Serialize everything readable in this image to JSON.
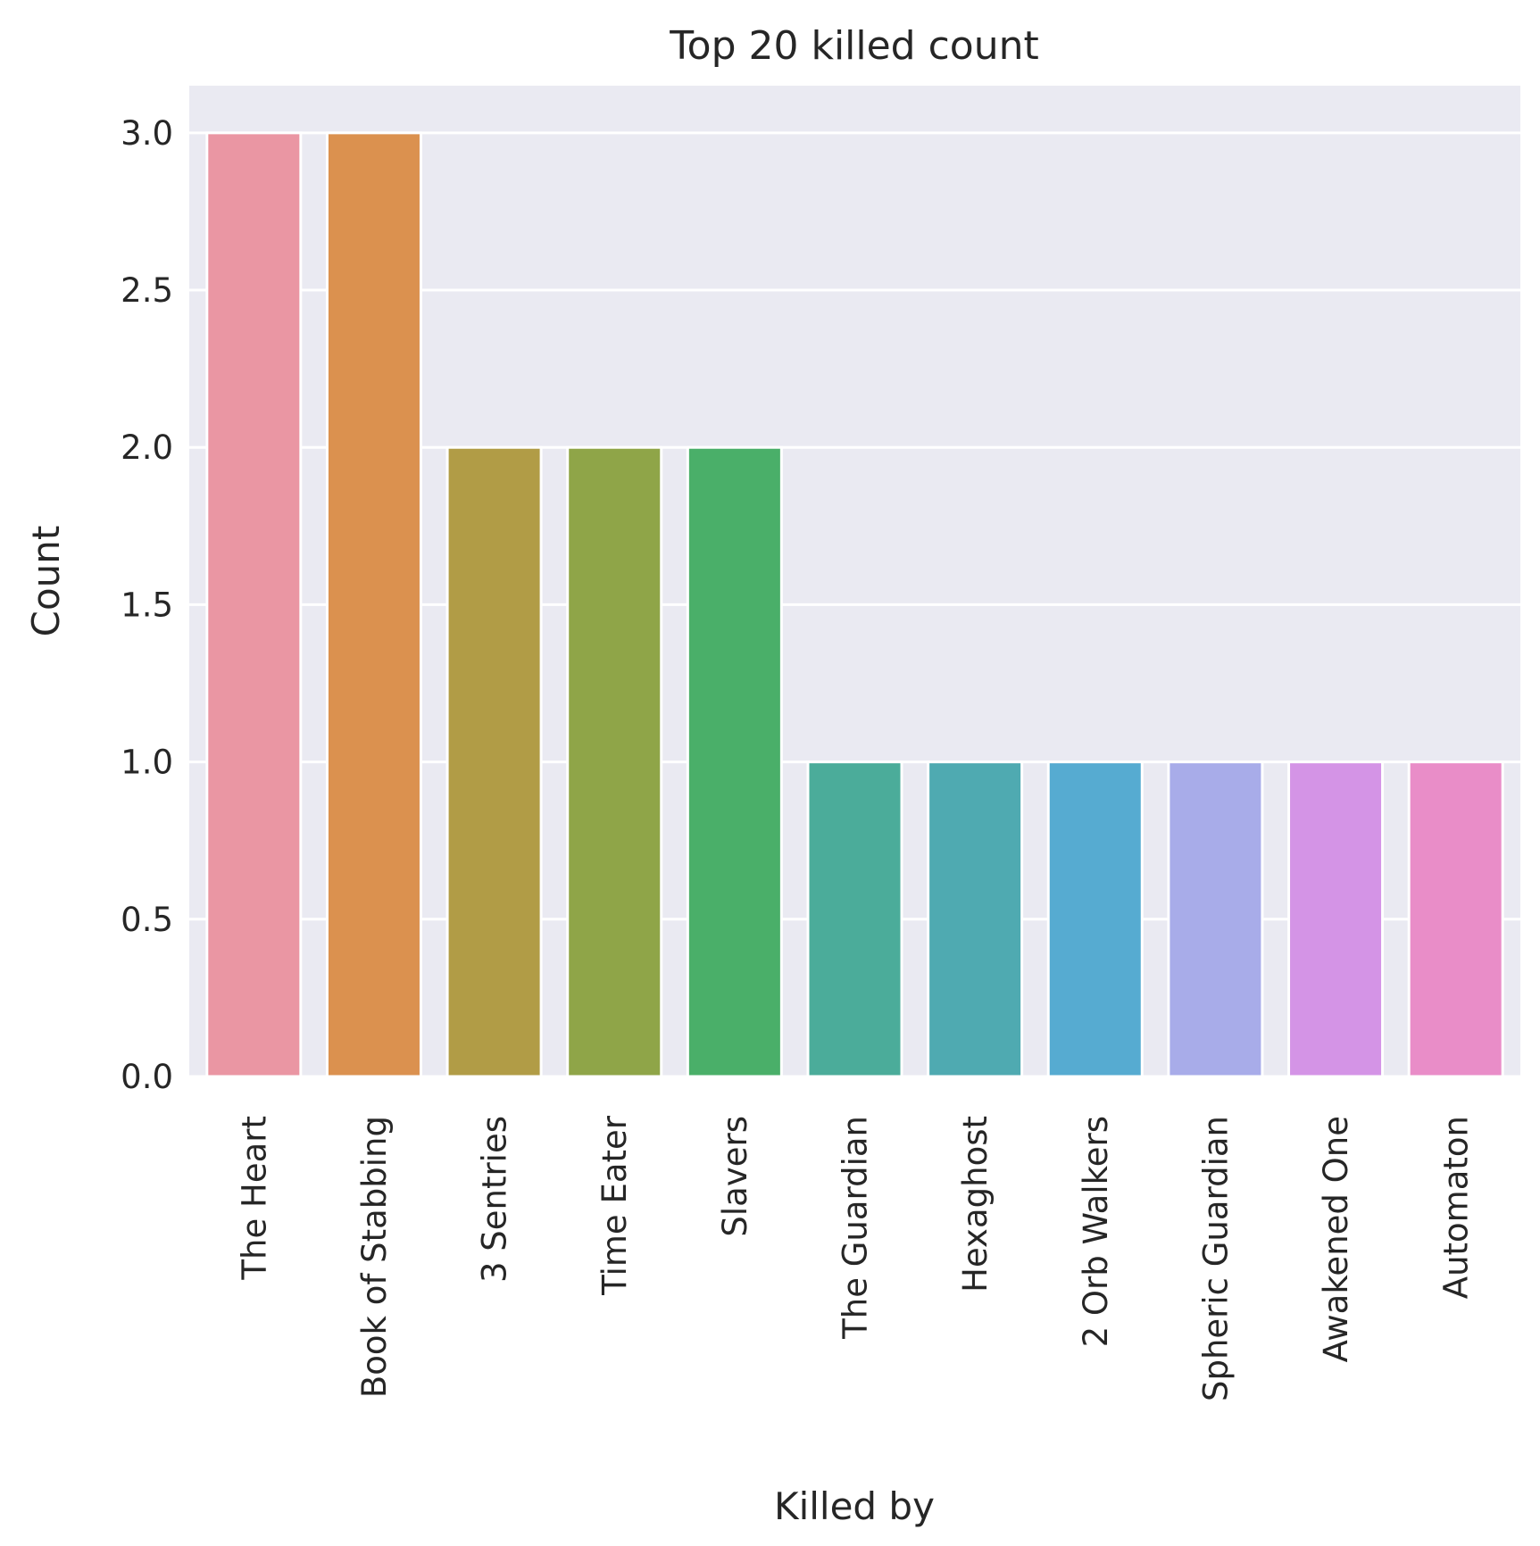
{
  "chart_data": {
    "type": "bar",
    "title": "Top 20 killed count",
    "xlabel": "Killed by",
    "ylabel": "Count",
    "categories": [
      "The Heart",
      "Book of Stabbing",
      "3 Sentries",
      "Time Eater",
      "Slavers",
      "The Guardian",
      "Hexaghost",
      "2 Orb Walkers",
      "Spheric Guardian",
      "Awakened One",
      "Automaton"
    ],
    "values": [
      3,
      3,
      2,
      2,
      2,
      1,
      1,
      1,
      1,
      1,
      1
    ],
    "colors": [
      "#ea96a3",
      "#db914f",
      "#b19c46",
      "#8fa548",
      "#4aaf69",
      "#4bac9a",
      "#4faab1",
      "#56abd1",
      "#a8ace9",
      "#d494e6",
      "#e98dc8"
    ],
    "yticks": [
      "0.0",
      "0.5",
      "1.0",
      "1.5",
      "2.0",
      "2.5",
      "3.0"
    ],
    "ylim": [
      0,
      3.15
    ],
    "grid": true,
    "background": "#eaeaf2"
  }
}
